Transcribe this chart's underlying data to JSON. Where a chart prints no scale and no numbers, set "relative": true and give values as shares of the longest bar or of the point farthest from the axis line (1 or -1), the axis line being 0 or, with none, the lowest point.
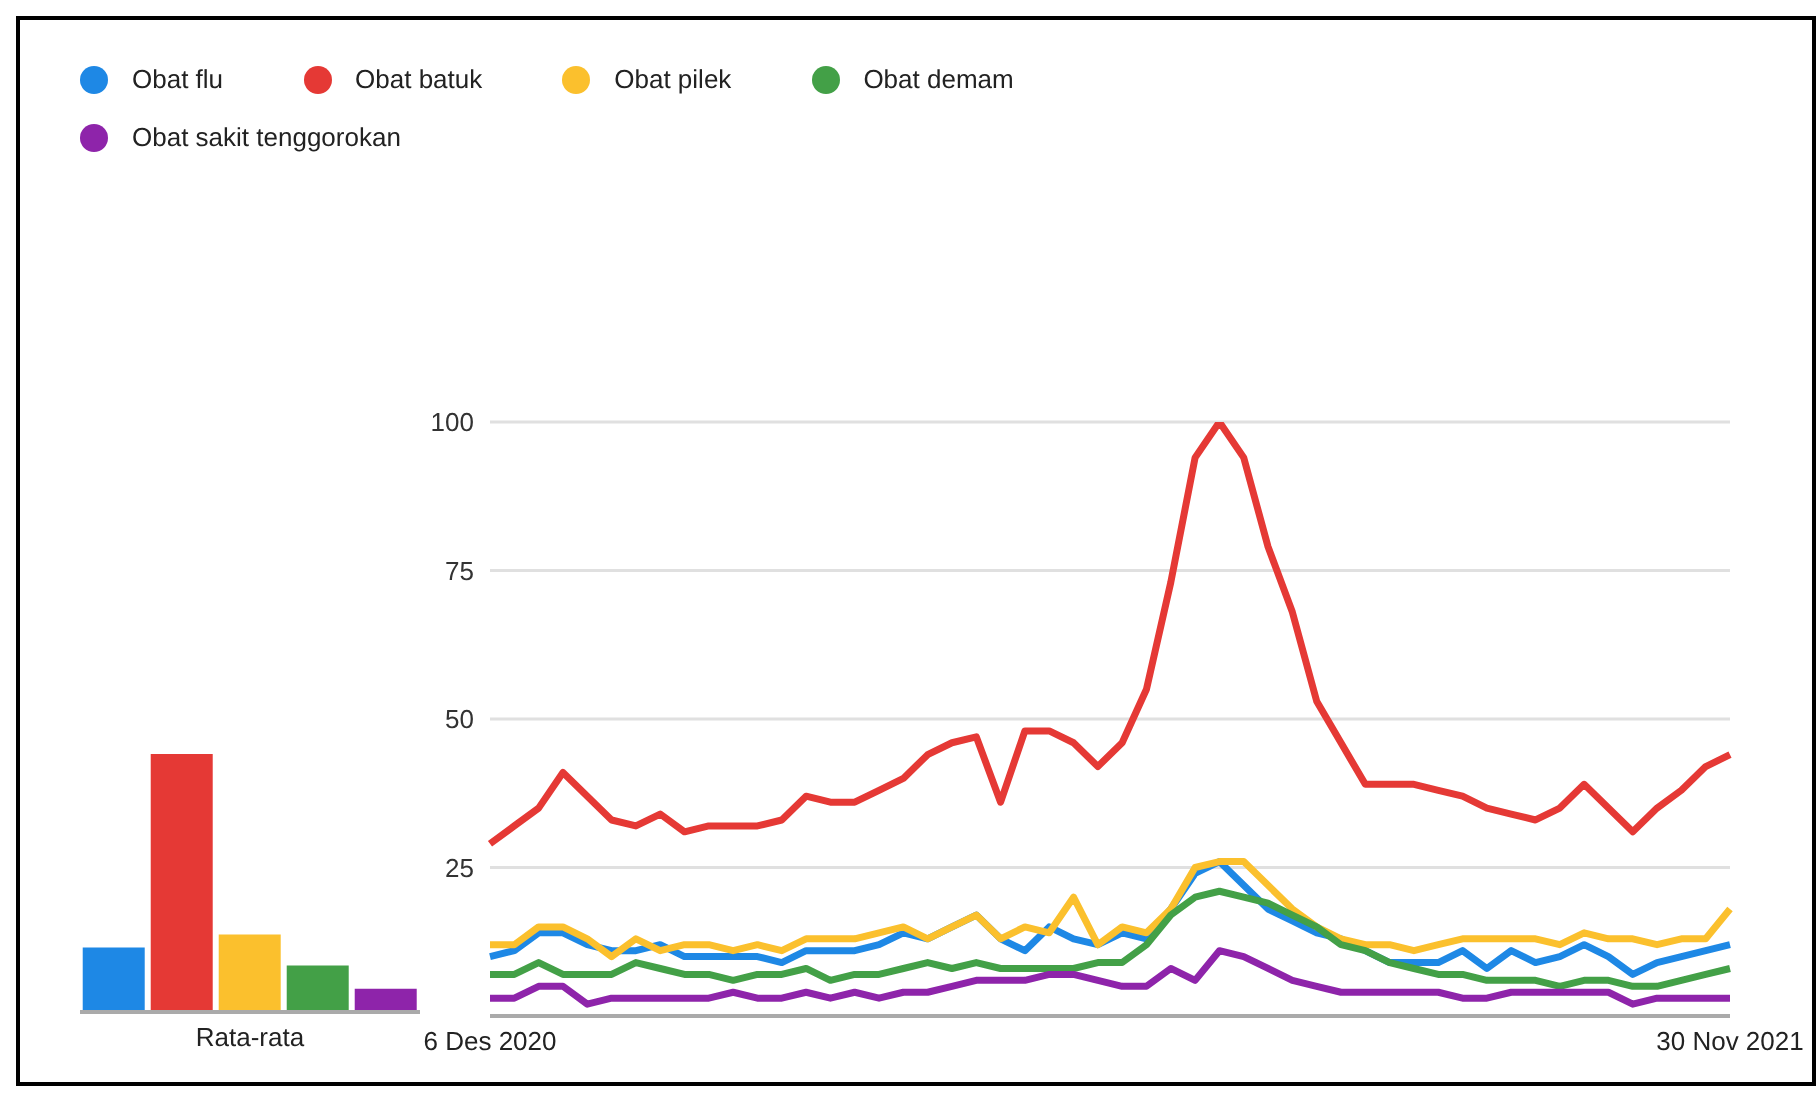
{
  "chart_data": [
    {
      "type": "bar",
      "categories": [
        null,
        null,
        "Rata-rata",
        null,
        null
      ],
      "relative": true,
      "grid": false,
      "legend": false,
      "series": [
        {
          "colors": [
            "#1e88e5",
            "#e53935",
            "#fbc02d",
            "#43a047",
            "#8e24aa"
          ],
          "values": [
            0.25,
            1,
            0.3,
            0.18,
            0.09
          ]
        }
      ]
    },
    {
      "type": "line",
      "categories": [
        "6 Des 2020",
        null,
        null,
        null,
        null,
        null,
        null,
        null,
        null,
        null,
        null,
        null,
        null,
        null,
        null,
        null,
        null,
        null,
        null,
        null,
        null,
        null,
        null,
        null,
        null,
        null,
        null,
        null,
        null,
        null,
        null,
        null,
        null,
        null,
        null,
        null,
        null,
        null,
        null,
        null,
        null,
        null,
        null,
        null,
        null,
        null,
        null,
        null,
        null,
        null,
        null,
        "30 Nov 2021"
      ],
      "ylim": [
        0,
        100
      ],
      "yticks": [
        25,
        50,
        75,
        100
      ],
      "grid": "y",
      "legend": "top left",
      "series": [
        {
          "name": "Obat flu",
          "color": "#1e88e5",
          "values": [
            10,
            11,
            14,
            14,
            12,
            11,
            11,
            12,
            10,
            10,
            10,
            10,
            9,
            11,
            11,
            11,
            12,
            14,
            13,
            15,
            17,
            13,
            11,
            15,
            13,
            12,
            14,
            13,
            18,
            24,
            26,
            22,
            18,
            16,
            14,
            13,
            11,
            9,
            9,
            9,
            11,
            8,
            11,
            9,
            10,
            12,
            10,
            7,
            9,
            10,
            11,
            12
          ]
        },
        {
          "name": "Obat batuk",
          "color": "#e53935",
          "values": [
            29,
            32,
            35,
            41,
            37,
            33,
            32,
            34,
            31,
            32,
            32,
            32,
            33,
            37,
            36,
            36,
            38,
            40,
            44,
            46,
            47,
            36,
            48,
            48,
            46,
            42,
            46,
            55,
            73,
            94,
            100,
            94,
            79,
            68,
            53,
            46,
            39,
            39,
            39,
            38,
            37,
            35,
            34,
            33,
            35,
            39,
            35,
            31,
            35,
            38,
            42,
            44
          ]
        },
        {
          "name": "Obat pilek",
          "color": "#fbc02d",
          "values": [
            12,
            12,
            15,
            15,
            13,
            10,
            13,
            11,
            12,
            12,
            11,
            12,
            11,
            13,
            13,
            13,
            14,
            15,
            13,
            15,
            17,
            13,
            15,
            14,
            20,
            12,
            15,
            14,
            18,
            25,
            26,
            26,
            22,
            18,
            15,
            13,
            12,
            12,
            11,
            12,
            13,
            13,
            13,
            13,
            12,
            14,
            13,
            13,
            12,
            13,
            13,
            18
          ]
        },
        {
          "name": "Obat demam",
          "color": "#43a047",
          "values": [
            7,
            7,
            9,
            7,
            7,
            7,
            9,
            8,
            7,
            7,
            6,
            7,
            7,
            8,
            6,
            7,
            7,
            8,
            9,
            8,
            9,
            8,
            8,
            8,
            8,
            9,
            9,
            12,
            17,
            20,
            21,
            20,
            19,
            17,
            15,
            12,
            11,
            9,
            8,
            7,
            7,
            6,
            6,
            6,
            5,
            6,
            6,
            5,
            5,
            6,
            7,
            8
          ]
        },
        {
          "name": "Obat sakit tenggorokan",
          "color": "#8e24aa",
          "values": [
            3,
            3,
            5,
            5,
            2,
            3,
            3,
            3,
            3,
            3,
            4,
            3,
            3,
            4,
            3,
            4,
            3,
            4,
            4,
            5,
            6,
            6,
            6,
            7,
            7,
            6,
            5,
            5,
            8,
            6,
            11,
            10,
            8,
            6,
            5,
            4,
            4,
            4,
            4,
            4,
            3,
            3,
            4,
            4,
            4,
            4,
            4,
            2,
            3,
            3,
            3,
            3
          ]
        }
      ]
    }
  ]
}
